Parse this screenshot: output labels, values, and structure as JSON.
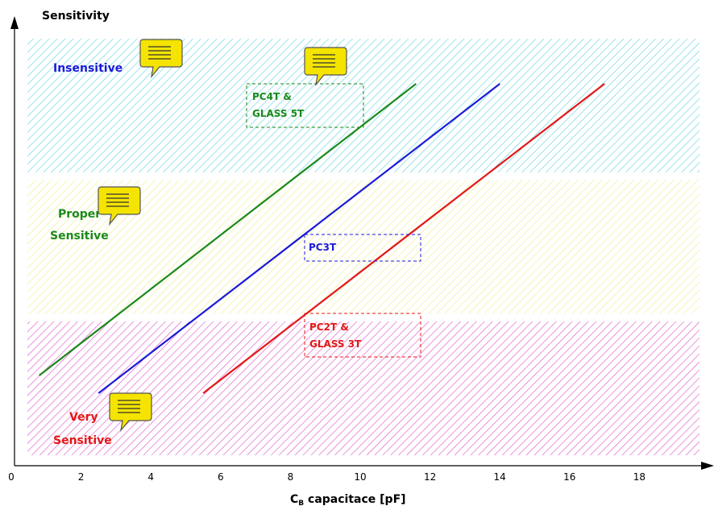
{
  "chart_data": {
    "type": "line",
    "title": "",
    "ylabel": "Sensitivity",
    "xlabel_main": "C",
    "xlabel_subscript": "B",
    "xlabel_rest": " capacitace [pF]",
    "xlim": [
      0,
      20
    ],
    "x_ticks": [
      "0",
      "2",
      "4",
      "6",
      "8",
      "10",
      "12",
      "14",
      "16",
      "18"
    ],
    "bands": [
      {
        "name": "Insensitive",
        "labels": [
          "Insensitive"
        ],
        "color": "#5ad2e0",
        "text_color": "#1b1bd8"
      },
      {
        "name": "Proper Sensitive",
        "labels": [
          "Proper",
          "Sensitive"
        ],
        "color": "#eeec84",
        "text_color": "#1a8a1a"
      },
      {
        "name": "Very Sensitive",
        "labels": [
          "Very",
          "Sensitive"
        ],
        "color": "#dd4cc8",
        "text_color": "#e31818"
      }
    ],
    "series": [
      {
        "name": "PC4T & GLASS 5T",
        "color": "#1a8a1a",
        "x": [
          0.8,
          11.6
        ]
      },
      {
        "name": "PC3T",
        "color": "#1b1bd8",
        "x": [
          2.5,
          14.0
        ]
      },
      {
        "name": "PC2T & GLASS 3T",
        "color": "#e31818",
        "x": [
          5.5,
          17.0
        ]
      }
    ],
    "annotations": [
      {
        "lines": [
          "PC4T &",
          "GLASS 5T"
        ],
        "color": "#1a8a1a"
      },
      {
        "lines": [
          "PC3T"
        ],
        "color": "#1b1bd8"
      },
      {
        "lines": [
          "PC2T &",
          "GLASS 3T"
        ],
        "color": "#e31818"
      }
    ]
  }
}
